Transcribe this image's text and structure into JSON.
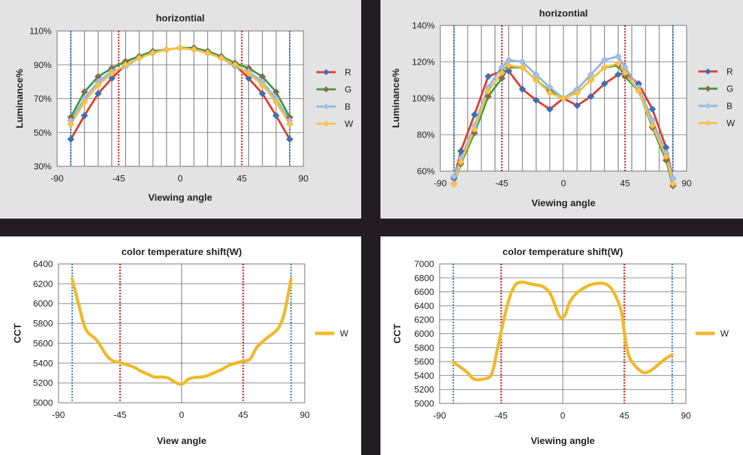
{
  "chart_data": [
    {
      "type": "line",
      "title": "horizontial",
      "xlabel": "Viewing angle",
      "ylabel": "Luminance%",
      "xlim": [
        -90,
        90
      ],
      "ylim": [
        30,
        110
      ],
      "xticks": [
        "-90",
        "-45",
        "0",
        "45",
        "90"
      ],
      "yticks": [
        "30%",
        "50%",
        "70%",
        "90%",
        "110%"
      ],
      "x_minor_grid": [
        -80,
        -70,
        -60,
        -50,
        -40,
        -30,
        -20,
        -10,
        0,
        10,
        20,
        30,
        40,
        50,
        60,
        70,
        80
      ],
      "vlines": [
        {
          "x": -80,
          "color": "#2e75b6"
        },
        {
          "x": -45,
          "color": "#c00000"
        },
        {
          "x": 45,
          "color": "#c00000"
        },
        {
          "x": 80,
          "color": "#2e75b6"
        }
      ],
      "x": [
        -80,
        -70,
        -60,
        -50,
        -40,
        -30,
        -20,
        -10,
        0,
        10,
        20,
        30,
        40,
        50,
        60,
        70,
        80
      ],
      "series": [
        {
          "name": "R",
          "color": "#e03a2f",
          "marker_color": "#3d6fb6",
          "values": [
            46,
            60,
            73,
            82,
            90,
            94,
            97,
            99,
            100,
            99,
            97,
            94,
            90,
            82,
            73,
            60,
            46
          ]
        },
        {
          "name": "G",
          "color": "#3a9a45",
          "marker_color": "#8a6a4a",
          "values": [
            59,
            74,
            83,
            88,
            92,
            95,
            98,
            99,
            100,
            100,
            98,
            95,
            91,
            88,
            83,
            74,
            59
          ]
        },
        {
          "name": "B",
          "color": "#8fb6e6",
          "marker_color": "#a7c1e4",
          "values": [
            57,
            70,
            80,
            86,
            89,
            94,
            97,
            99,
            100,
            99,
            97,
            94,
            89,
            86,
            80,
            70,
            57
          ]
        },
        {
          "name": "W",
          "color": "#f5c243",
          "marker_color": "#f6c25a",
          "values": [
            55,
            68,
            78,
            85,
            90,
            94,
            97,
            99,
            100,
            99,
            97,
            94,
            90,
            85,
            78,
            68,
            55
          ]
        }
      ],
      "legend_position": "right"
    },
    {
      "type": "line",
      "title": "horizontial",
      "xlabel": "Viewing angle",
      "ylabel": "Luminance%",
      "xlim": [
        -90,
        90
      ],
      "ylim": [
        60,
        140
      ],
      "xticks": [
        "-90",
        "-45",
        "0",
        "45",
        "90"
      ],
      "yticks": [
        "60%",
        "80%",
        "100%",
        "120%",
        "140%"
      ],
      "x_minor_grid": [
        -80,
        -70,
        -60,
        -50,
        -40,
        -30,
        -20,
        -10,
        0,
        10,
        20,
        30,
        40,
        50,
        60,
        70,
        80
      ],
      "vlines": [
        {
          "x": -80,
          "color": "#2e75b6"
        },
        {
          "x": -45,
          "color": "#c00000"
        },
        {
          "x": 45,
          "color": "#c00000"
        },
        {
          "x": 80,
          "color": "#2e75b6"
        }
      ],
      "x": [
        -80,
        -75,
        -65,
        -55,
        -45,
        -40,
        -30,
        -20,
        -10,
        0,
        10,
        20,
        30,
        40,
        45,
        55,
        65,
        75,
        80
      ],
      "series": [
        {
          "name": "R",
          "color": "#e03a2f",
          "marker_color": "#3d6fb6",
          "values": [
            56,
            71,
            91,
            112,
            115,
            115,
            105,
            99,
            94,
            100,
            96,
            101,
            108,
            113,
            114,
            108,
            94,
            73,
            56
          ]
        },
        {
          "name": "G",
          "color": "#3a9a45",
          "marker_color": "#8a6a4a",
          "values": [
            53,
            64,
            81,
            101,
            111,
            117,
            117,
            110,
            104,
            100,
            103,
            110,
            117,
            118,
            112,
            104,
            84,
            66,
            52
          ]
        },
        {
          "name": "B",
          "color": "#8fb6e6",
          "marker_color": "#a7c1e4",
          "values": [
            57,
            67,
            85,
            106,
            117,
            121,
            120,
            113,
            106,
            100,
            105,
            113,
            121,
            123,
            117,
            106,
            88,
            70,
            56
          ]
        },
        {
          "name": "W",
          "color": "#f5c243",
          "marker_color": "#f6c25a",
          "values": [
            53,
            65,
            83,
            104,
            114,
            118,
            117,
            110,
            103,
            100,
            103,
            110,
            117,
            119,
            114,
            104,
            85,
            68,
            53
          ]
        }
      ],
      "legend_position": "right"
    },
    {
      "type": "line",
      "title": "color temperature shift(W)",
      "xlabel": "View angle",
      "ylabel": "CCT",
      "xlim": [
        -90,
        90
      ],
      "ylim": [
        5000,
        6400
      ],
      "xticks": [
        "-90",
        "-45",
        "0",
        "45",
        "90"
      ],
      "yticks": [
        "5000",
        "5200",
        "5400",
        "5600",
        "5800",
        "6000",
        "6200",
        "6400"
      ],
      "x_minor_grid": [
        0
      ],
      "vlines": [
        {
          "x": -80,
          "color": "#2e75b6"
        },
        {
          "x": -45,
          "color": "#c00000"
        },
        {
          "x": 45,
          "color": "#c00000"
        },
        {
          "x": 80,
          "color": "#2e75b6"
        }
      ],
      "x": [
        -80,
        -75,
        -70,
        -62,
        -55,
        -50,
        -45,
        -35,
        -30,
        -25,
        -20,
        -15,
        -10,
        -5,
        -2,
        0,
        2,
        5,
        10,
        15,
        20,
        25,
        30,
        35,
        45,
        50,
        55,
        62,
        70,
        75,
        80
      ],
      "series": [
        {
          "name": "W",
          "color": "#f0b929",
          "marker_color": "#f0b929",
          "values": [
            6250,
            5980,
            5740,
            5630,
            5480,
            5420,
            5405,
            5360,
            5320,
            5290,
            5260,
            5260,
            5250,
            5210,
            5190,
            5190,
            5200,
            5240,
            5255,
            5260,
            5280,
            5310,
            5340,
            5380,
            5420,
            5440,
            5560,
            5650,
            5740,
            5900,
            6250
          ]
        }
      ],
      "legend_position": "right"
    },
    {
      "type": "line",
      "title": "color temperature shift(W)",
      "xlabel": "Viewing angle",
      "ylabel": "CCT",
      "xlim": [
        -90,
        90
      ],
      "ylim": [
        5000,
        7000
      ],
      "xticks": [
        "-90",
        "-45",
        "0",
        "45",
        "90"
      ],
      "yticks": [
        "5000",
        "5200",
        "5400",
        "5600",
        "5800",
        "6000",
        "6200",
        "6400",
        "6600",
        "6800",
        "7000"
      ],
      "x_minor_grid": [
        0
      ],
      "vlines": [
        {
          "x": -80,
          "color": "#2e75b6"
        },
        {
          "x": -45,
          "color": "#c00000"
        },
        {
          "x": 45,
          "color": "#c00000"
        },
        {
          "x": 80,
          "color": "#2e75b6"
        }
      ],
      "x": [
        -80,
        -70,
        -65,
        -58,
        -52,
        -48,
        -45,
        -40,
        -35,
        -30,
        -25,
        -20,
        -15,
        -10,
        -7,
        -4,
        -2,
        0,
        2,
        5,
        10,
        15,
        20,
        25,
        30,
        35,
        40,
        43,
        45,
        48,
        52,
        56,
        60,
        65,
        70,
        75,
        80
      ],
      "series": [
        {
          "name": "W",
          "color": "#f0b929",
          "marker_color": "#f0b929",
          "values": [
            5590,
            5450,
            5350,
            5350,
            5420,
            5760,
            6030,
            6450,
            6690,
            6740,
            6720,
            6700,
            6680,
            6600,
            6480,
            6320,
            6240,
            6230,
            6280,
            6450,
            6580,
            6650,
            6700,
            6720,
            6720,
            6660,
            6480,
            6300,
            6020,
            5700,
            5560,
            5480,
            5440,
            5480,
            5560,
            5640,
            5700
          ]
        }
      ],
      "legend_position": "right"
    }
  ]
}
